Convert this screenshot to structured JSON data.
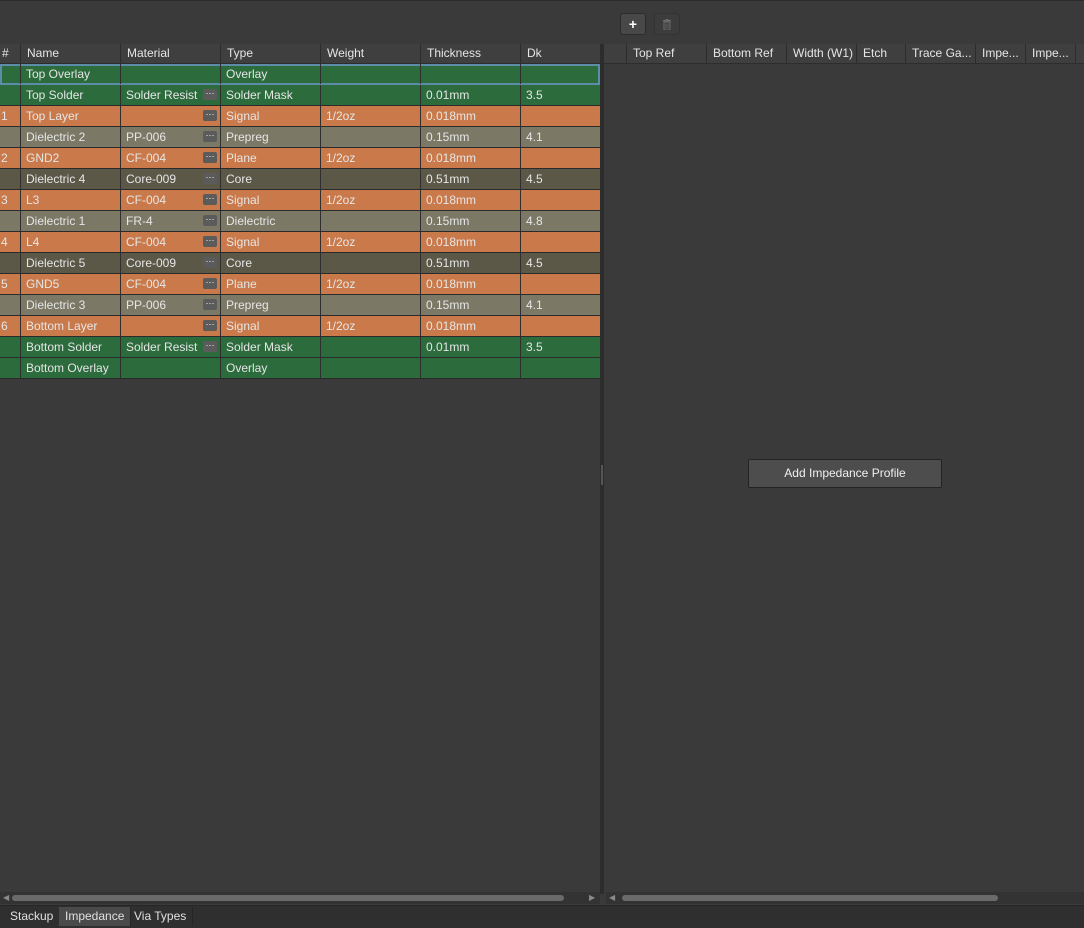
{
  "toolbar": {
    "add_icon": "plus-icon",
    "delete_icon": "trash-icon"
  },
  "stackup": {
    "columns": [
      "#",
      "Name",
      "Material",
      "Type",
      "Weight",
      "Thickness",
      "Dk"
    ],
    "rows": [
      {
        "num": "",
        "name": "Top Overlay",
        "material": "",
        "type": "Overlay",
        "weight": "",
        "thickness": "",
        "dk": "",
        "kind": "overlay",
        "dots": false
      },
      {
        "num": "",
        "name": "Top Solder",
        "material": "Solder Resist",
        "type": "Solder Mask",
        "weight": "",
        "thickness": "0.01mm",
        "dk": "3.5",
        "kind": "mask",
        "dots": true
      },
      {
        "num": "1",
        "name": "Top Layer",
        "material": "",
        "type": "Signal",
        "weight": "1/2oz",
        "thickness": "0.018mm",
        "dk": "",
        "kind": "signal",
        "dots": true
      },
      {
        "num": "",
        "name": "Dielectric 2",
        "material": "PP-006",
        "type": "Prepreg",
        "weight": "",
        "thickness": "0.15mm",
        "dk": "4.1",
        "kind": "prepreg",
        "dots": true
      },
      {
        "num": "2",
        "name": "GND2",
        "material": "CF-004",
        "type": "Plane",
        "weight": "1/2oz",
        "thickness": "0.018mm",
        "dk": "",
        "kind": "signal",
        "dots": true
      },
      {
        "num": "",
        "name": "Dielectric 4",
        "material": "Core-009",
        "type": "Core",
        "weight": "",
        "thickness": "0.51mm",
        "dk": "4.5",
        "kind": "core",
        "dots": true
      },
      {
        "num": "3",
        "name": "L3",
        "material": "CF-004",
        "type": "Signal",
        "weight": "1/2oz",
        "thickness": "0.018mm",
        "dk": "",
        "kind": "signal",
        "dots": true
      },
      {
        "num": "",
        "name": "Dielectric 1",
        "material": "FR-4",
        "type": "Dielectric",
        "weight": "",
        "thickness": "0.15mm",
        "dk": "4.8",
        "kind": "dielectric",
        "dots": true
      },
      {
        "num": "4",
        "name": "L4",
        "material": "CF-004",
        "type": "Signal",
        "weight": "1/2oz",
        "thickness": "0.018mm",
        "dk": "",
        "kind": "signal",
        "dots": true
      },
      {
        "num": "",
        "name": "Dielectric 5",
        "material": "Core-009",
        "type": "Core",
        "weight": "",
        "thickness": "0.51mm",
        "dk": "4.5",
        "kind": "core",
        "dots": true
      },
      {
        "num": "5",
        "name": "GND5",
        "material": "CF-004",
        "type": "Plane",
        "weight": "1/2oz",
        "thickness": "0.018mm",
        "dk": "",
        "kind": "signal",
        "dots": true
      },
      {
        "num": "",
        "name": "Dielectric 3",
        "material": "PP-006",
        "type": "Prepreg",
        "weight": "",
        "thickness": "0.15mm",
        "dk": "4.1",
        "kind": "prepreg",
        "dots": true
      },
      {
        "num": "6",
        "name": "Bottom Layer",
        "material": "",
        "type": "Signal",
        "weight": "1/2oz",
        "thickness": "0.018mm",
        "dk": "",
        "kind": "signal",
        "dots": true
      },
      {
        "num": "",
        "name": "Bottom Solder",
        "material": "Solder Resist",
        "type": "Solder Mask",
        "weight": "",
        "thickness": "0.01mm",
        "dk": "3.5",
        "kind": "mask",
        "dots": true
      },
      {
        "num": "",
        "name": "Bottom Overlay",
        "material": "",
        "type": "Overlay",
        "weight": "",
        "thickness": "",
        "dk": "",
        "kind": "overlay",
        "dots": false
      }
    ]
  },
  "impedance": {
    "columns": [
      "Top Ref",
      "Bottom Ref",
      "Width (W1)",
      "Etch",
      "Trace Ga...",
      "Impe...",
      "Impe..."
    ],
    "add_button": "Add Impedance Profile"
  },
  "tabs": [
    {
      "label": "Stackup",
      "active": false
    },
    {
      "label": "Impedance",
      "active": true
    },
    {
      "label": "Via Types",
      "active": false
    }
  ],
  "colors": {
    "overlay": "#2b6b3c",
    "signal": "#c9794a",
    "prepreg": "#7b7866",
    "core": "#5b5848"
  }
}
